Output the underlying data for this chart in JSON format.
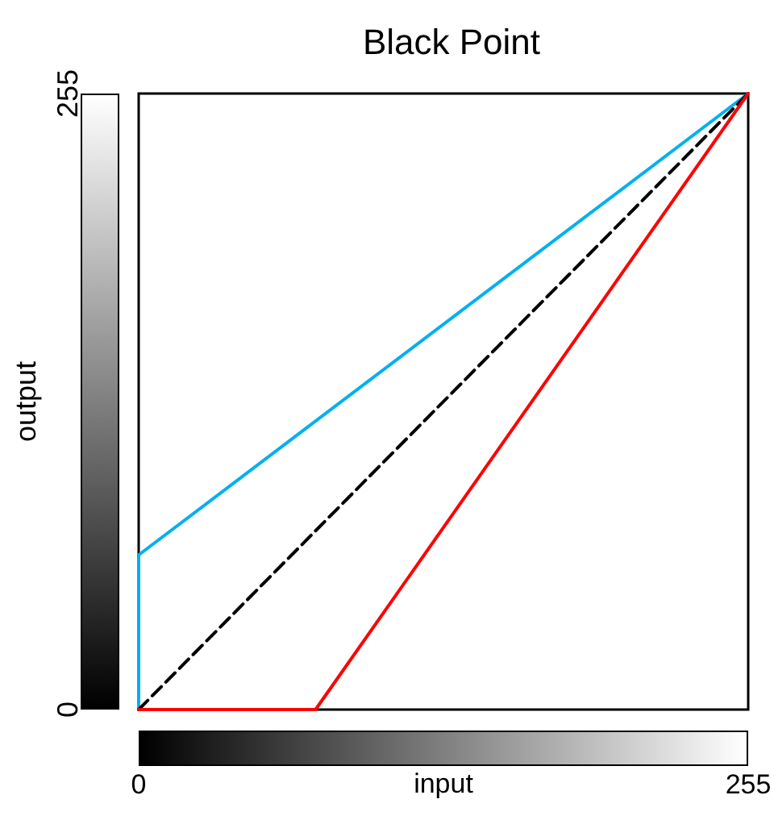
{
  "chart_data": {
    "type": "line",
    "title": "Black Point",
    "xlabel": "input",
    "ylabel": "output",
    "xlim": [
      0,
      255
    ],
    "ylim": [
      0,
      255
    ],
    "xticks": [
      0,
      255
    ],
    "yticks": [
      0,
      255
    ],
    "grid": false,
    "marker": "none",
    "series": [
      {
        "color": "#00b0f0",
        "x": [
          0,
          0,
          255
        ],
        "values": [
          0,
          64,
          255
        ],
        "line_style": "solid"
      },
      {
        "color": "#000000",
        "x": [
          0,
          255
        ],
        "values": [
          0,
          255
        ],
        "line_style": "dashed"
      },
      {
        "color": "#ff0000",
        "x": [
          0,
          74,
          255
        ],
        "values": [
          0,
          0,
          255
        ],
        "line_style": "solid"
      }
    ]
  }
}
